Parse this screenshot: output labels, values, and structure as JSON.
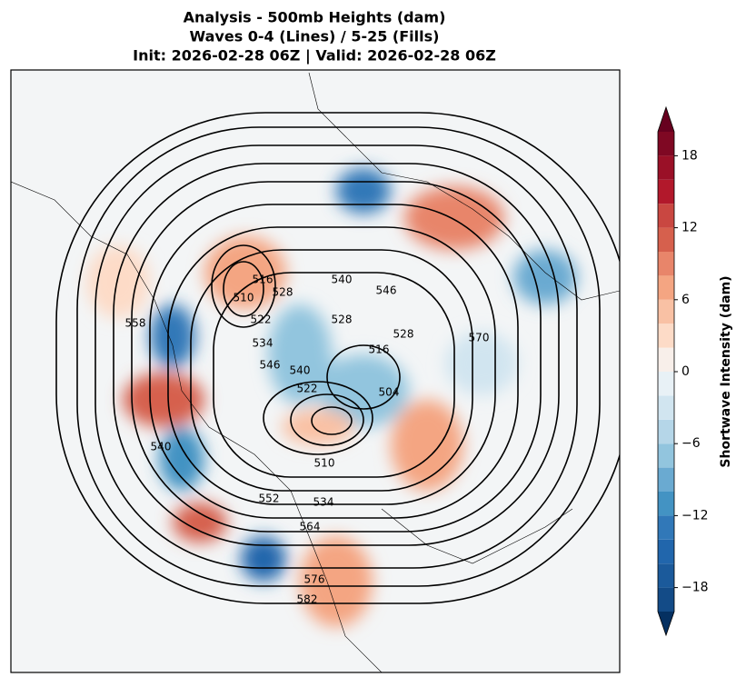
{
  "chart_data": {
    "type": "contour-map",
    "title_lines": [
      "Analysis - 500mb Heights (dam)",
      "Waves 0-4 (Lines) / 5-25 (Fills)",
      "Init: 2026-02-28 06Z | Valid: 2026-02-28 06Z"
    ],
    "contour_labels": [
      510,
      516,
      528,
      522,
      534,
      546,
      540,
      540,
      546,
      528,
      528,
      516,
      570,
      558,
      540,
      504,
      522,
      510,
      552,
      534,
      564,
      576,
      582
    ],
    "colorbar": {
      "label": "Shortwave Intensity (dam)",
      "lim": [
        -20,
        20
      ],
      "levels": [
        -20,
        -18,
        -16,
        -14,
        -12,
        -10,
        -8,
        -6,
        -4,
        -2,
        0,
        2,
        4,
        6,
        8,
        10,
        12,
        14,
        16,
        18,
        20
      ],
      "colors": [
        "#134b87",
        "#1b5a9b",
        "#2166ac",
        "#3178b8",
        "#4393c3",
        "#6aaad1",
        "#92c5de",
        "#b5d6e8",
        "#d1e5f0",
        "#e8f1f6",
        "#f8efea",
        "#fddbc7",
        "#f9c1a4",
        "#f4a582",
        "#e8856a",
        "#d6604d",
        "#c94741",
        "#b2182b",
        "#9a1027",
        "#7f0823"
      ],
      "extend_colors": [
        "#053061",
        "#67001f"
      ],
      "ticks": [
        {
          "value": -18,
          "label": "−18"
        },
        {
          "value": -12,
          "label": "−12"
        },
        {
          "value": -6,
          "label": "−6"
        },
        0,
        6,
        12,
        18
      ]
    }
  }
}
